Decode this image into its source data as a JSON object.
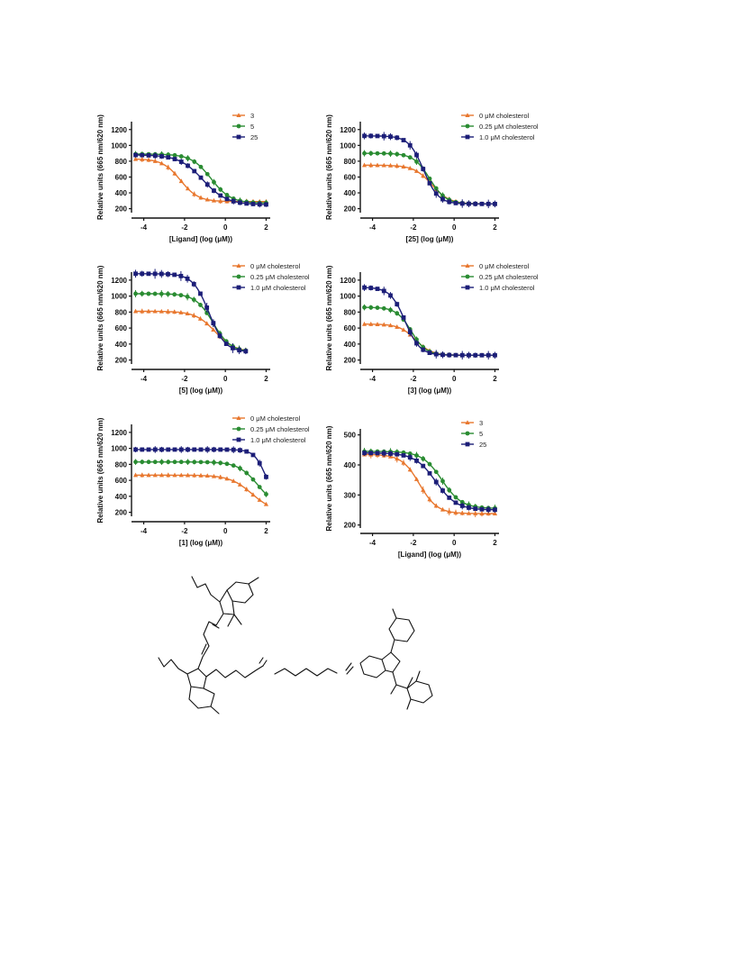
{
  "colors": {
    "orange": "#e8772e",
    "green": "#2a8c32",
    "navy": "#1c1e78"
  },
  "chart_data": [
    {
      "type": "line",
      "xlabel": "[Ligand] (log (μM))",
      "ylabel": "Relative units (665 nm/620 nm)",
      "xlim": [
        -4.6,
        2.2
      ],
      "ylim": [
        150,
        1300
      ],
      "xticks": [
        -4,
        -2,
        0,
        2
      ],
      "yticks": [
        200,
        400,
        600,
        800,
        1000,
        1200
      ],
      "legend_position": "top-right",
      "series": [
        {
          "name": "3",
          "color": "orange",
          "marker": "triangle",
          "bottom": 290,
          "top": 830,
          "ic50": -2.2,
          "hill": 1.0,
          "xmax": 2.0
        },
        {
          "name": "5",
          "color": "green",
          "marker": "circle",
          "bottom": 270,
          "top": 890,
          "ic50": -0.7,
          "hill": 0.9,
          "xmax": 2.0
        },
        {
          "name": "25",
          "color": "navy",
          "marker": "square",
          "bottom": 250,
          "top": 880,
          "ic50": -1.1,
          "hill": 0.75,
          "xmax": 2.0
        }
      ]
    },
    {
      "type": "line",
      "xlabel": "[25] (log (μM))",
      "ylabel": "Relative units (665 nm/620 nm)",
      "xlim": [
        -4.6,
        2.2
      ],
      "ylim": [
        150,
        1300
      ],
      "xticks": [
        -4,
        -2,
        0,
        2
      ],
      "yticks": [
        200,
        400,
        600,
        800,
        1000,
        1200
      ],
      "legend_position": "top-right",
      "series": [
        {
          "name": "0 μM cholesterol",
          "color": "orange",
          "marker": "triangle",
          "bottom": 260,
          "top": 750,
          "ic50": -1.1,
          "hill": 1.0,
          "xmax": 2.0
        },
        {
          "name": "0.25 μM cholesterol",
          "color": "green",
          "marker": "circle",
          "bottom": 260,
          "top": 900,
          "ic50": -1.2,
          "hill": 1.1,
          "xmax": 2.0
        },
        {
          "name": "1.0 μM cholesterol",
          "color": "navy",
          "marker": "square",
          "bottom": 260,
          "top": 1120,
          "ic50": -1.5,
          "hill": 1.2,
          "xmax": 2.0
        }
      ]
    },
    {
      "type": "line",
      "xlabel": "[5] (log (μM))",
      "ylabel": "Relative units (665 nm/620 nm)",
      "xlim": [
        -4.6,
        2.2
      ],
      "ylim": [
        150,
        1300
      ],
      "xticks": [
        -4,
        -2,
        0,
        2
      ],
      "yticks": [
        200,
        400,
        600,
        800,
        1000,
        1200
      ],
      "legend_position": "top-right",
      "series": [
        {
          "name": "0 μM cholesterol",
          "color": "orange",
          "marker": "triangle",
          "bottom": 300,
          "top": 810,
          "ic50": -0.5,
          "hill": 0.9,
          "xmax": 1.0
        },
        {
          "name": "0.25 μM cholesterol",
          "color": "green",
          "marker": "circle",
          "bottom": 300,
          "top": 1030,
          "ic50": -0.6,
          "hill": 1.0,
          "xmax": 1.0
        },
        {
          "name": "1.0 μM cholesterol",
          "color": "navy",
          "marker": "square",
          "bottom": 300,
          "top": 1280,
          "ic50": -0.8,
          "hill": 1.1,
          "xmax": 1.0
        }
      ]
    },
    {
      "type": "line",
      "xlabel": "[3] (log (μM))",
      "ylabel": "Relative units (665 nm/620 nm)",
      "xlim": [
        -4.6,
        2.2
      ],
      "ylim": [
        150,
        1300
      ],
      "xticks": [
        -4,
        -2,
        0,
        2
      ],
      "yticks": [
        200,
        400,
        600,
        800,
        1000,
        1200
      ],
      "legend_position": "top-right",
      "series": [
        {
          "name": "0 μM cholesterol",
          "color": "orange",
          "marker": "triangle",
          "bottom": 260,
          "top": 650,
          "ic50": -1.9,
          "hill": 1.1,
          "xmax": 2.0
        },
        {
          "name": "0.25 μM cholesterol",
          "color": "green",
          "marker": "circle",
          "bottom": 260,
          "top": 860,
          "ic50": -2.1,
          "hill": 1.2,
          "xmax": 2.0
        },
        {
          "name": "1.0 μM cholesterol",
          "color": "navy",
          "marker": "square",
          "bottom": 260,
          "top": 1110,
          "ic50": -2.4,
          "hill": 1.2,
          "xmax": 2.0
        }
      ]
    },
    {
      "type": "line",
      "xlabel": "[1] (log (μM))",
      "ylabel": "Relative units (665 nm/620 nm)",
      "xlim": [
        -4.6,
        2.2
      ],
      "ylim": [
        150,
        1300
      ],
      "xticks": [
        -4,
        -2,
        0,
        2
      ],
      "yticks": [
        200,
        400,
        600,
        800,
        1000,
        1200
      ],
      "legend_position": "top-right",
      "series": [
        {
          "name": "0 μM cholesterol",
          "color": "orange",
          "marker": "triangle",
          "bottom": 200,
          "top": 665,
          "ic50": 1.3,
          "hill": 0.8,
          "xmax": 2.0
        },
        {
          "name": "0.25 μM cholesterol",
          "color": "green",
          "marker": "circle",
          "bottom": 250,
          "top": 830,
          "ic50": 1.6,
          "hill": 0.9,
          "xmax": 2.0
        },
        {
          "name": "1.0 μM cholesterol",
          "color": "navy",
          "marker": "square",
          "bottom": 300,
          "top": 985,
          "ic50": 2.0,
          "hill": 1.5,
          "xmax": 2.0
        }
      ]
    },
    {
      "type": "line",
      "xlabel": "[Ligand] (log (μM))",
      "ylabel": "Relative units (665 nm/620 nm)",
      "xlim": [
        -4.6,
        2.2
      ],
      "ylim": [
        190,
        520
      ],
      "xticks": [
        -4,
        -2,
        0,
        2
      ],
      "yticks": [
        200,
        300,
        400,
        500
      ],
      "legend_position": "top-right",
      "series": [
        {
          "name": "3",
          "color": "orange",
          "marker": "triangle",
          "bottom": 238,
          "top": 435,
          "ic50": -1.7,
          "hill": 1.0,
          "xmax": 2.0
        },
        {
          "name": "5",
          "color": "green",
          "marker": "circle",
          "bottom": 255,
          "top": 445,
          "ic50": -0.6,
          "hill": 0.9,
          "xmax": 2.0
        },
        {
          "name": "25",
          "color": "navy",
          "marker": "square",
          "bottom": 250,
          "top": 440,
          "ic50": -0.9,
          "hill": 0.85,
          "xmax": 2.0
        }
      ]
    }
  ]
}
